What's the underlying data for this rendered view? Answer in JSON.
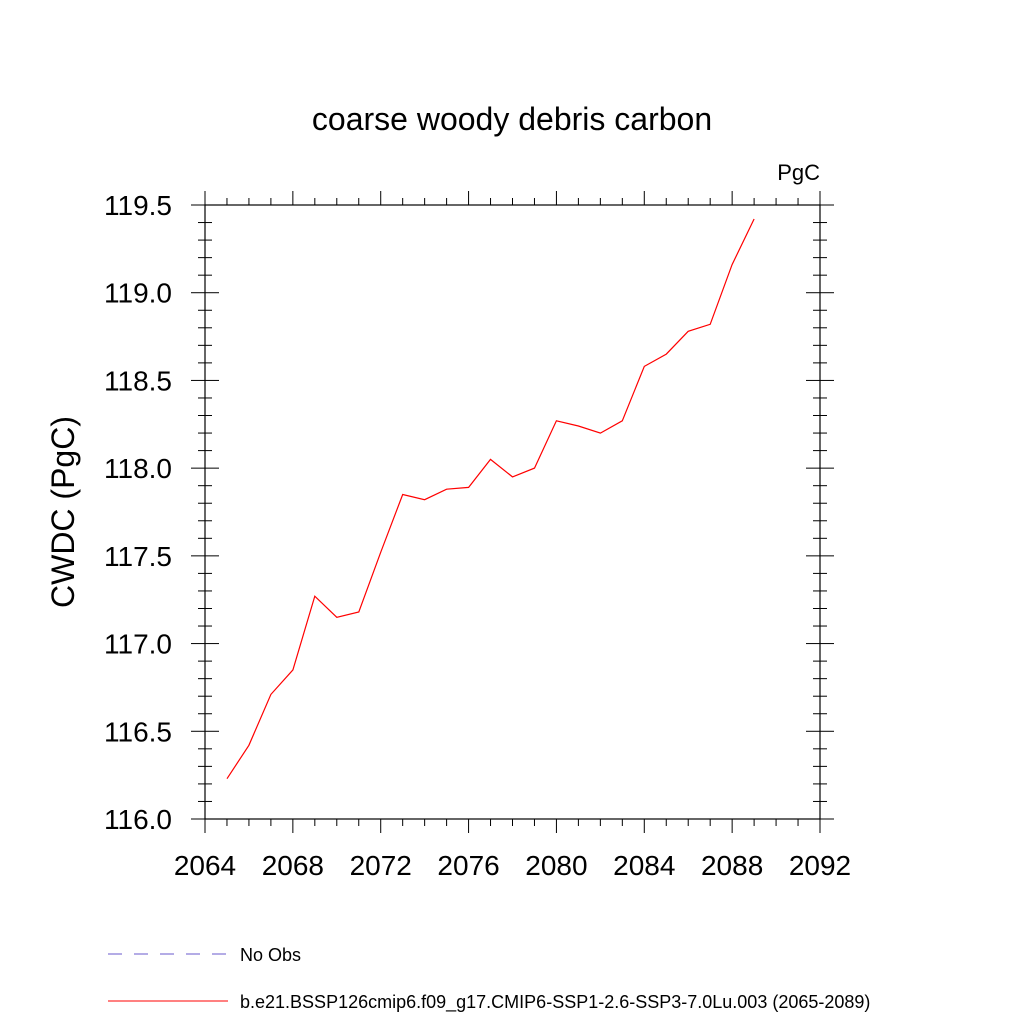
{
  "chart_data": {
    "type": "line",
    "title": "coarse woody debris carbon",
    "units_label": "PgC",
    "xlabel": "",
    "ylabel": "CWDC  (PgC)",
    "xlim": [
      2064,
      2092
    ],
    "ylim": [
      116.0,
      119.5
    ],
    "x_major_ticks": [
      2064,
      2068,
      2072,
      2076,
      2080,
      2084,
      2088,
      2092
    ],
    "x_minor_step": 1,
    "y_major_ticks": [
      116.0,
      116.5,
      117.0,
      117.5,
      118.0,
      118.5,
      119.0,
      119.5
    ],
    "y_tick_labels": [
      "116.0",
      "116.5",
      "117.0",
      "117.5",
      "118.0",
      "118.5",
      "119.0",
      "119.5"
    ],
    "y_minor_step": 0.1,
    "grid": false,
    "legend_position": "bottom",
    "series": [
      {
        "name": "No Obs",
        "color": "#6a5acd",
        "dash": "dashed",
        "x": [],
        "y": []
      },
      {
        "name": "b.e21.BSSP126cmip6.f09_g17.CMIP6-SSP1-2.6-SSP3-7.0Lu.003 (2065-2089)",
        "color": "#ff0000",
        "dash": "solid",
        "x": [
          2065,
          2066,
          2067,
          2068,
          2069,
          2070,
          2071,
          2072,
          2073,
          2074,
          2075,
          2076,
          2077,
          2078,
          2079,
          2080,
          2081,
          2082,
          2083,
          2084,
          2085,
          2086,
          2087,
          2088,
          2089
        ],
        "y": [
          116.23,
          116.42,
          116.71,
          116.85,
          117.27,
          117.15,
          117.18,
          117.52,
          117.85,
          117.82,
          117.88,
          117.89,
          118.05,
          117.95,
          118.0,
          118.27,
          118.24,
          118.2,
          118.27,
          118.58,
          118.65,
          118.78,
          118.82,
          119.16,
          119.42
        ]
      }
    ]
  }
}
